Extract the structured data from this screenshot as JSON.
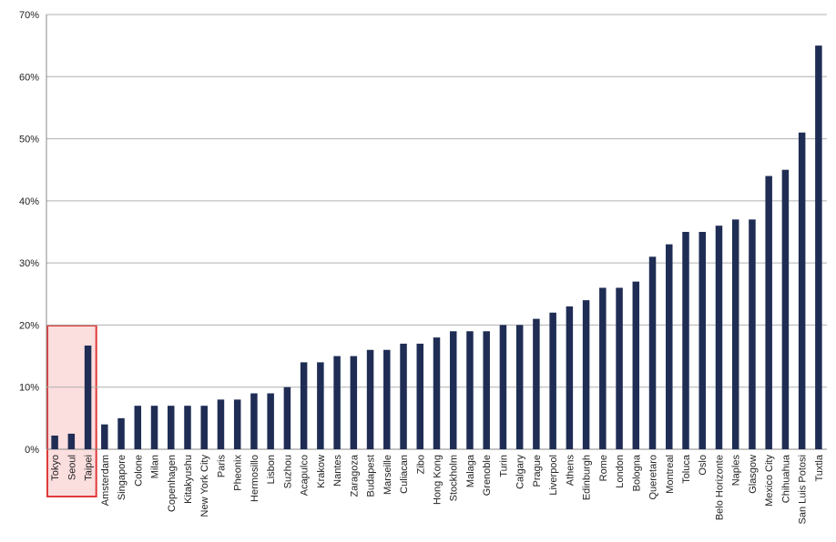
{
  "chart_data": {
    "type": "bar",
    "title": "",
    "xlabel": "",
    "ylabel": "",
    "ylim": [
      0,
      70
    ],
    "y_tick_values": [
      0,
      10,
      20,
      30,
      40,
      50,
      60,
      70
    ],
    "y_tick_labels": [
      "0%",
      "10%",
      "20%",
      "30%",
      "40%",
      "50%",
      "60%",
      "70%"
    ],
    "grid": true,
    "bar_color": "#1f2d55",
    "highlight_fill": "#fbdede",
    "highlight_stroke": "#e03a3a",
    "highlight_categories": [
      "Tokyo",
      "Seoul",
      "Taipei"
    ],
    "categories": [
      "Tokyo",
      "Seoul",
      "Taipei",
      "Amsterdam",
      "Singapore",
      "Colone",
      "Milan",
      "Copenhagen",
      "Kitakyushu",
      "New York City",
      "Paris",
      "Pheonix",
      "Hermosillo",
      "Lisbon",
      "Suzhou",
      "Acapulco",
      "Krakow",
      "Nantes",
      "Zaragoza",
      "Budapest",
      "Marseille",
      "Culiacan",
      "Zibo",
      "Hong Kong",
      "Stockholm",
      "Malaga",
      "Grenoble",
      "Turin",
      "Calgary",
      "Prague",
      "Liverpool",
      "Athens",
      "Edinburgh",
      "Rome",
      "London",
      "Bologna",
      "Queretaro",
      "Montreal",
      "Toluca",
      "Oslo",
      "Belo Horizonte",
      "Naples",
      "Glasgow",
      "Mexico City",
      "Chihuahua",
      "San Luis Potosi",
      "Tuxtla"
    ],
    "values": [
      2.2,
      2.5,
      16.7,
      4,
      5,
      7,
      7,
      7,
      7,
      7,
      8,
      8,
      9,
      9,
      10,
      14,
      14,
      15,
      15,
      16,
      16,
      17,
      17,
      18,
      19,
      19,
      19,
      20,
      20,
      21,
      22,
      23,
      24,
      26,
      26,
      27,
      31,
      33,
      35,
      35,
      36,
      37,
      37,
      44,
      45,
      51,
      65
    ]
  }
}
